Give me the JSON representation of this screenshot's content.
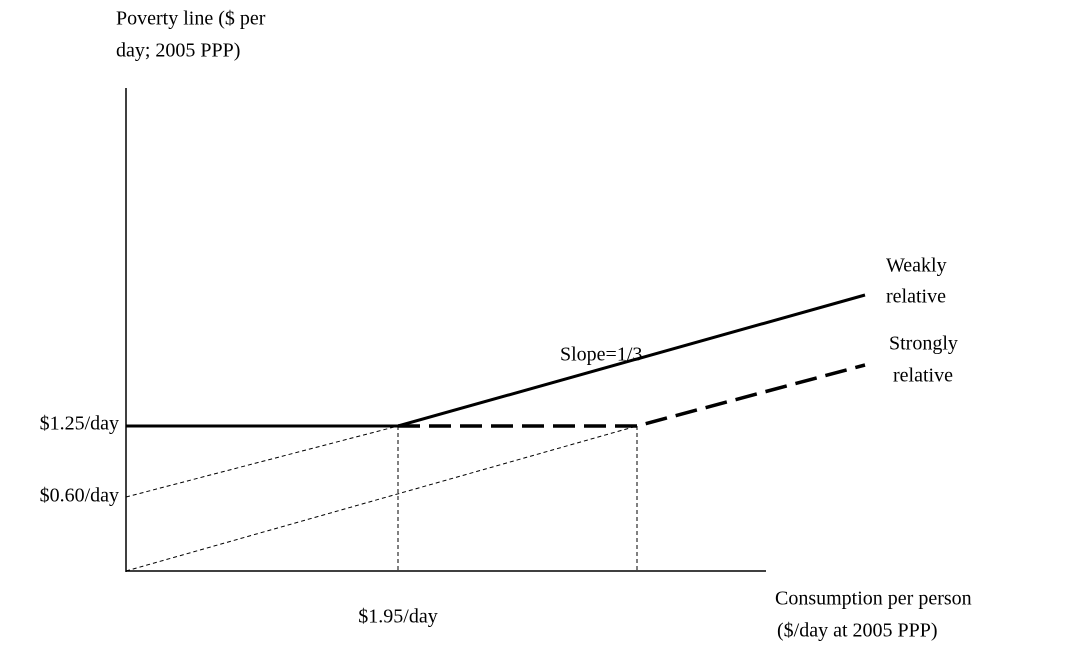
{
  "y_axis_label": [
    "Poverty line ($ per",
    "day; 2005 PPP)"
  ],
  "x_axis_label": [
    "Consumption per person",
    "($/day at 2005 PPP)"
  ],
  "y_labels": [
    "$1.25/day",
    "$0.60/day"
  ],
  "x_labels": [
    "$1.95/day"
  ],
  "annotations": {
    "slope": "Slope=1/3",
    "weakly": [
      "Weakly",
      "relative"
    ],
    "strongly": [
      "Strongly",
      "relative"
    ]
  }
}
